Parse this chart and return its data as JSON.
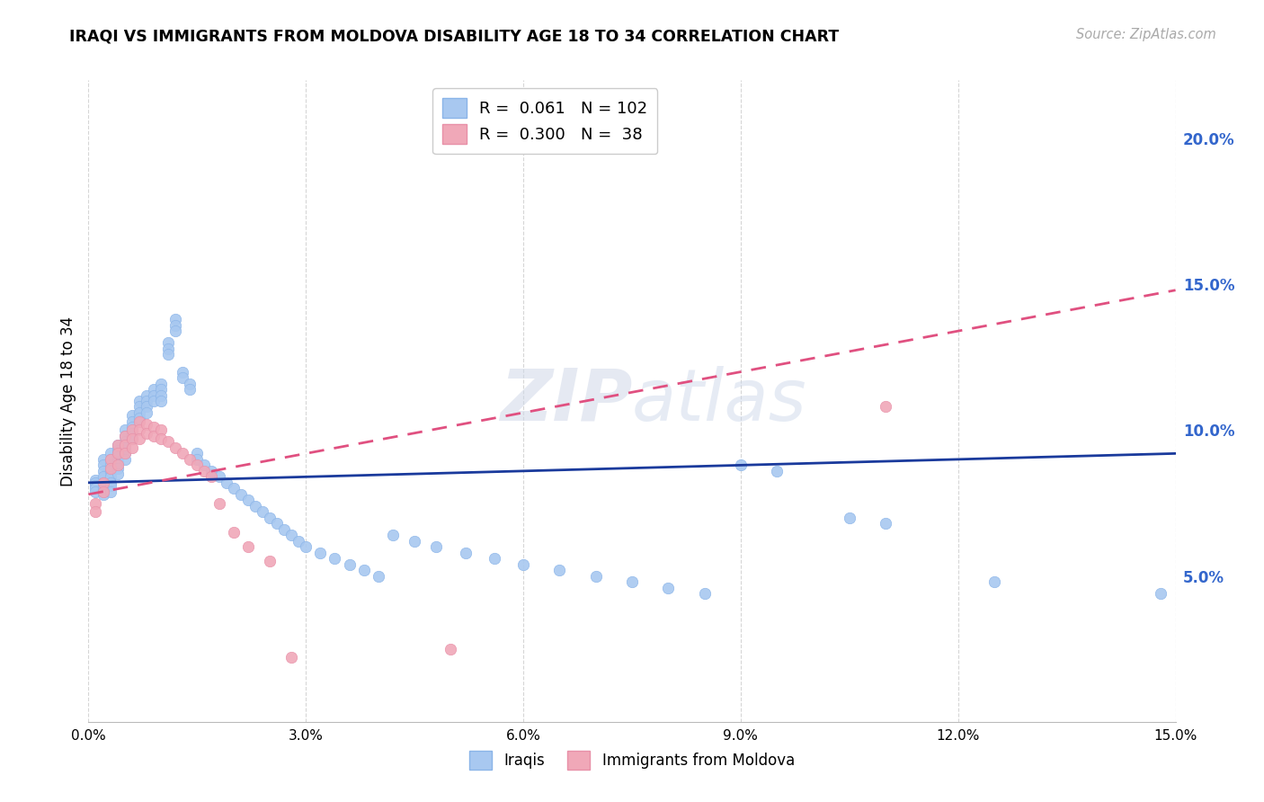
{
  "title": "IRAQI VS IMMIGRANTS FROM MOLDOVA DISABILITY AGE 18 TO 34 CORRELATION CHART",
  "source_text": "Source: ZipAtlas.com",
  "ylabel": "Disability Age 18 to 34",
  "xlim": [
    0.0,
    0.15
  ],
  "ylim": [
    0.0,
    0.22
  ],
  "xticks": [
    0.0,
    0.03,
    0.06,
    0.09,
    0.12,
    0.15
  ],
  "xticklabels": [
    "0.0%",
    "3.0%",
    "6.0%",
    "9.0%",
    "12.0%",
    "15.0%"
  ],
  "ytick_positions": [
    0.05,
    0.1,
    0.15,
    0.2
  ],
  "ytick_labels": [
    "5.0%",
    "10.0%",
    "15.0%",
    "20.0%"
  ],
  "legend_r_iraqis": "0.061",
  "legend_n_iraqis": "102",
  "legend_r_moldova": "0.300",
  "legend_n_moldova": "38",
  "iraqis_color": "#a8c8f0",
  "moldova_color": "#f0a8b8",
  "iraqis_line_color": "#1a3a9c",
  "moldova_line_color": "#e05080",
  "watermark_zip": "ZIP",
  "watermark_atlas": "atlas",
  "iraqis_x": [
    0.001,
    0.001,
    0.001,
    0.001,
    0.001,
    0.002,
    0.002,
    0.002,
    0.002,
    0.002,
    0.002,
    0.002,
    0.002,
    0.003,
    0.003,
    0.003,
    0.003,
    0.003,
    0.003,
    0.003,
    0.003,
    0.004,
    0.004,
    0.004,
    0.004,
    0.004,
    0.004,
    0.005,
    0.005,
    0.005,
    0.005,
    0.005,
    0.005,
    0.006,
    0.006,
    0.006,
    0.006,
    0.006,
    0.007,
    0.007,
    0.007,
    0.007,
    0.008,
    0.008,
    0.008,
    0.008,
    0.009,
    0.009,
    0.009,
    0.01,
    0.01,
    0.01,
    0.01,
    0.011,
    0.011,
    0.011,
    0.012,
    0.012,
    0.012,
    0.013,
    0.013,
    0.014,
    0.014,
    0.015,
    0.015,
    0.016,
    0.017,
    0.018,
    0.019,
    0.02,
    0.021,
    0.022,
    0.023,
    0.024,
    0.025,
    0.026,
    0.027,
    0.028,
    0.029,
    0.03,
    0.032,
    0.034,
    0.036,
    0.038,
    0.04,
    0.042,
    0.045,
    0.048,
    0.052,
    0.056,
    0.06,
    0.065,
    0.07,
    0.075,
    0.08,
    0.085,
    0.09,
    0.095,
    0.105,
    0.11,
    0.125,
    0.148
  ],
  "iraqis_y": [
    0.083,
    0.082,
    0.081,
    0.08,
    0.079,
    0.09,
    0.088,
    0.086,
    0.084,
    0.082,
    0.08,
    0.079,
    0.078,
    0.092,
    0.09,
    0.088,
    0.086,
    0.084,
    0.082,
    0.081,
    0.079,
    0.095,
    0.093,
    0.091,
    0.089,
    0.087,
    0.085,
    0.1,
    0.098,
    0.096,
    0.094,
    0.092,
    0.09,
    0.105,
    0.103,
    0.101,
    0.099,
    0.097,
    0.11,
    0.108,
    0.106,
    0.104,
    0.112,
    0.11,
    0.108,
    0.106,
    0.114,
    0.112,
    0.11,
    0.116,
    0.114,
    0.112,
    0.11,
    0.13,
    0.128,
    0.126,
    0.138,
    0.136,
    0.134,
    0.12,
    0.118,
    0.116,
    0.114,
    0.092,
    0.09,
    0.088,
    0.086,
    0.084,
    0.082,
    0.08,
    0.078,
    0.076,
    0.074,
    0.072,
    0.07,
    0.068,
    0.066,
    0.064,
    0.062,
    0.06,
    0.058,
    0.056,
    0.054,
    0.052,
    0.05,
    0.064,
    0.062,
    0.06,
    0.058,
    0.056,
    0.054,
    0.052,
    0.05,
    0.048,
    0.046,
    0.044,
    0.088,
    0.086,
    0.07,
    0.068,
    0.048,
    0.044
  ],
  "moldova_x": [
    0.001,
    0.001,
    0.002,
    0.002,
    0.003,
    0.003,
    0.004,
    0.004,
    0.004,
    0.005,
    0.005,
    0.005,
    0.006,
    0.006,
    0.006,
    0.007,
    0.007,
    0.007,
    0.008,
    0.008,
    0.009,
    0.009,
    0.01,
    0.01,
    0.011,
    0.012,
    0.013,
    0.014,
    0.015,
    0.016,
    0.017,
    0.018,
    0.02,
    0.022,
    0.025,
    0.028,
    0.05,
    0.11
  ],
  "moldova_y": [
    0.075,
    0.072,
    0.082,
    0.079,
    0.09,
    0.087,
    0.095,
    0.092,
    0.088,
    0.098,
    0.095,
    0.092,
    0.1,
    0.097,
    0.094,
    0.103,
    0.1,
    0.097,
    0.102,
    0.099,
    0.101,
    0.098,
    0.1,
    0.097,
    0.096,
    0.094,
    0.092,
    0.09,
    0.088,
    0.086,
    0.084,
    0.075,
    0.065,
    0.06,
    0.055,
    0.022,
    0.025,
    0.108
  ],
  "iraqis_line_x": [
    0.0,
    0.15
  ],
  "iraqis_line_y": [
    0.082,
    0.092
  ],
  "moldova_line_x": [
    0.0,
    0.15
  ],
  "moldova_line_y": [
    0.078,
    0.148
  ]
}
